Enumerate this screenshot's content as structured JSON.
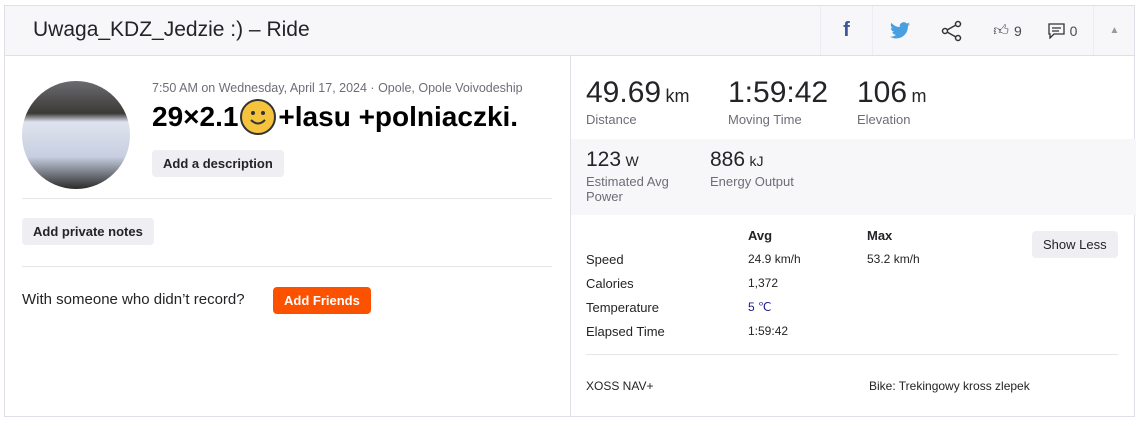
{
  "header": {
    "title": "Uwaga_KDZ_Jedzie :) – Ride",
    "kudos_count": "9",
    "comments_count": "0"
  },
  "activity": {
    "meta": "7:50 AM on Wednesday, April 17, 2024 · Opole, Opole Voivodeship",
    "name_prefix": "29×2.1",
    "name_suffix": "+lasu +polniaczki.",
    "add_description": "Add a description",
    "add_private_notes": "Add private notes",
    "with_someone": "With someone who didn’t record?",
    "add_friends": "Add Friends"
  },
  "stats": [
    {
      "value": "49.69",
      "unit": "km",
      "label": "Distance"
    },
    {
      "value": "1:59:42",
      "unit": "",
      "label": "Moving Time"
    },
    {
      "value": "106",
      "unit": "m",
      "label": "Elevation"
    }
  ],
  "secondary_stats": [
    {
      "value": "123",
      "unit": "W",
      "label": "Estimated Avg Power"
    },
    {
      "value": "886",
      "unit": "kJ",
      "label": "Energy Output"
    }
  ],
  "details": {
    "col_avg": "Avg",
    "col_max": "Max",
    "show_less": "Show Less",
    "rows": [
      {
        "label": "Speed",
        "avg": "24.9 km/h",
        "max": "53.2 km/h"
      },
      {
        "label": "Calories",
        "avg": "1,372",
        "max": ""
      },
      {
        "label": "Temperature",
        "avg": "5 ℃",
        "max": ""
      },
      {
        "label": "Elapsed Time",
        "avg": "1:59:42",
        "max": ""
      }
    ],
    "device": "XOSS NAV+",
    "bike": "Bike: Trekingowy kross zlepek"
  },
  "colors": {
    "accent": "#fc5200",
    "facebook": "#3b5998",
    "twitter": "#4a9fe0",
    "temperature": "#1a1a8a"
  }
}
